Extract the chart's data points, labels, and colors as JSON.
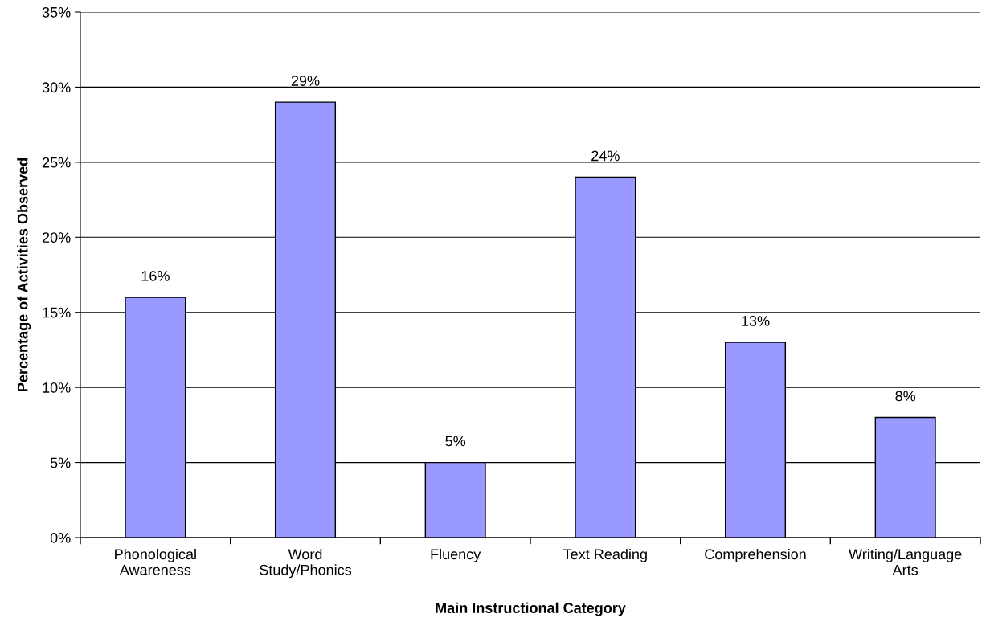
{
  "chart_data": {
    "type": "bar",
    "xlabel": "Main Instructional Category",
    "ylabel": "Percentage of Activities Observed",
    "categories": [
      "Phonological\nAwareness",
      "Word\nStudy/Phonics",
      "Fluency",
      "Text Reading",
      "Comprehension",
      "Writing/Language\nArts"
    ],
    "values": [
      16,
      29,
      5,
      24,
      13,
      8
    ],
    "value_labels": [
      "16%",
      "29%",
      "5%",
      "24%",
      "13%",
      "8%"
    ],
    "color": "#9999ff",
    "ylim": [
      0,
      35
    ],
    "yticks": [
      {
        "value": 0,
        "label": "0%"
      },
      {
        "value": 5,
        "label": "5%"
      },
      {
        "value": 10,
        "label": "10%"
      },
      {
        "value": 15,
        "label": "15%"
      },
      {
        "value": 20,
        "label": "20%"
      },
      {
        "value": 25,
        "label": "25%"
      },
      {
        "value": 30,
        "label": "30%"
      },
      {
        "value": 35,
        "label": "35%"
      }
    ],
    "grid": "y"
  }
}
